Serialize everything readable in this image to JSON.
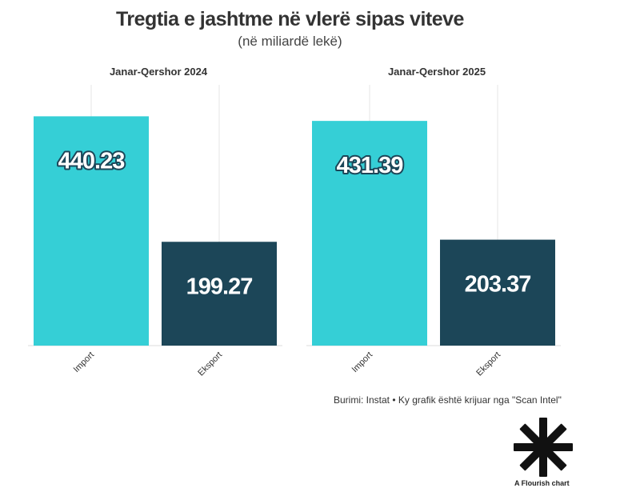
{
  "title": "Tregtia e jashtme në vlerë sipas viteve",
  "subtitle": "(në miliardë lekë)",
  "source_text": "Burimi: Instat • Ky grafik është krijuar nga \"Scan Intel\"",
  "flourish_label": "A Flourish chart",
  "colors": {
    "import": "#35cfd6",
    "eksport": "#1c4658",
    "grid": "#e6e6e6"
  },
  "chart_data": [
    {
      "type": "bar",
      "title": "Janar-Qershor 2024",
      "categories": [
        "Import",
        "Eksport"
      ],
      "values": [
        440.23,
        199.27
      ],
      "labels": [
        "440.23",
        "199.27"
      ],
      "ylim": [
        0,
        470
      ]
    },
    {
      "type": "bar",
      "title": "Janar-Qershor 2025",
      "categories": [
        "Import",
        "Eksport"
      ],
      "values": [
        431.39,
        203.37
      ],
      "labels": [
        "431.39",
        "203.37"
      ],
      "ylim": [
        0,
        470
      ]
    }
  ]
}
